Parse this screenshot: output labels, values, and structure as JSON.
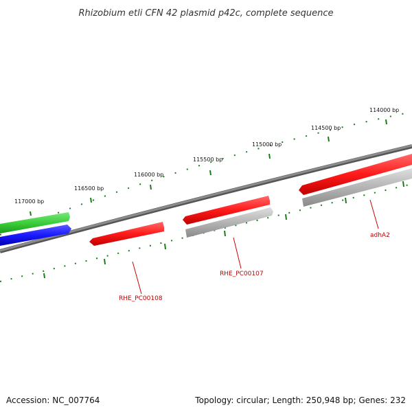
{
  "title": "Rhizobium etli CFN 42 plasmid p42c, complete sequence",
  "ticks": [
    {
      "label": "117000 bp"
    },
    {
      "label": "116500 bp"
    },
    {
      "label": "116000 bp"
    },
    {
      "label": "115500 bp"
    },
    {
      "label": "115000 bp"
    },
    {
      "label": "114500 bp"
    },
    {
      "label": "114000 bp"
    }
  ],
  "genes": [
    {
      "label": "RHE_PC00108"
    },
    {
      "label": "RHE_PC00107"
    },
    {
      "label": "adhA2"
    }
  ],
  "footer": {
    "accession": "Accession: NC_007764",
    "summary": "Topology: circular; Length: 250,948 bp; Genes: 232"
  },
  "colors": {
    "backbone": "#808080",
    "tick": "#1a7a1a",
    "gene_red": "#ff1a1a",
    "gene_gray": "#b4b4b4",
    "gene_green": "#3ccf3c",
    "gene_blue": "#1a1aff",
    "label_red": "#bb0000"
  }
}
